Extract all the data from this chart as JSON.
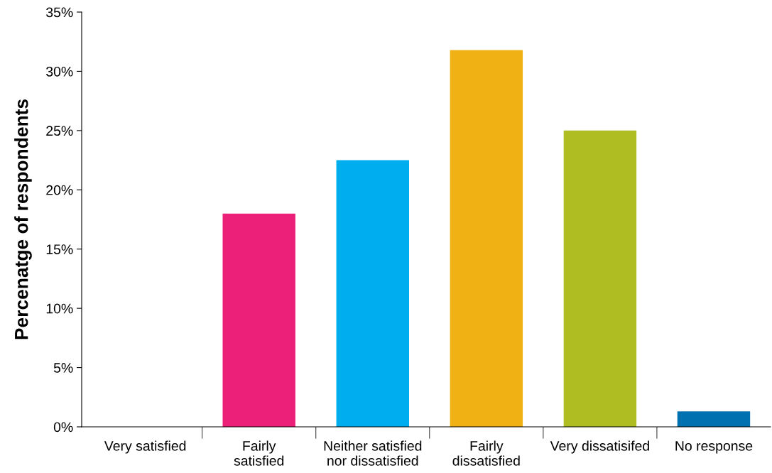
{
  "chart_data": {
    "type": "bar",
    "ylabel": "Percenatge of respondents",
    "categories": [
      "Very satisfied",
      "Fairly\nsatisfied",
      "Neither satisfied\nnor dissatisfied",
      "Fairly\ndissatisfied",
      "Very dissatisifed",
      "No response"
    ],
    "values": [
      0,
      18,
      22.5,
      31.8,
      25,
      1.3
    ],
    "colors": [
      "#7f3f98",
      "#ec2079",
      "#00aeef",
      "#efb114",
      "#afbd22",
      "#0071b0"
    ],
    "ylim": [
      0,
      35
    ],
    "yticks": [
      {
        "value": 0,
        "label": "0%"
      },
      {
        "value": 5,
        "label": "5%"
      },
      {
        "value": 10,
        "label": "10%"
      },
      {
        "value": 15,
        "label": "15%"
      },
      {
        "value": 20,
        "label": "20%"
      },
      {
        "value": 25,
        "label": "25%"
      },
      {
        "value": 30,
        "label": "30%"
      },
      {
        "value": 35,
        "label": "35%"
      }
    ],
    "grid": false,
    "legend": false
  }
}
